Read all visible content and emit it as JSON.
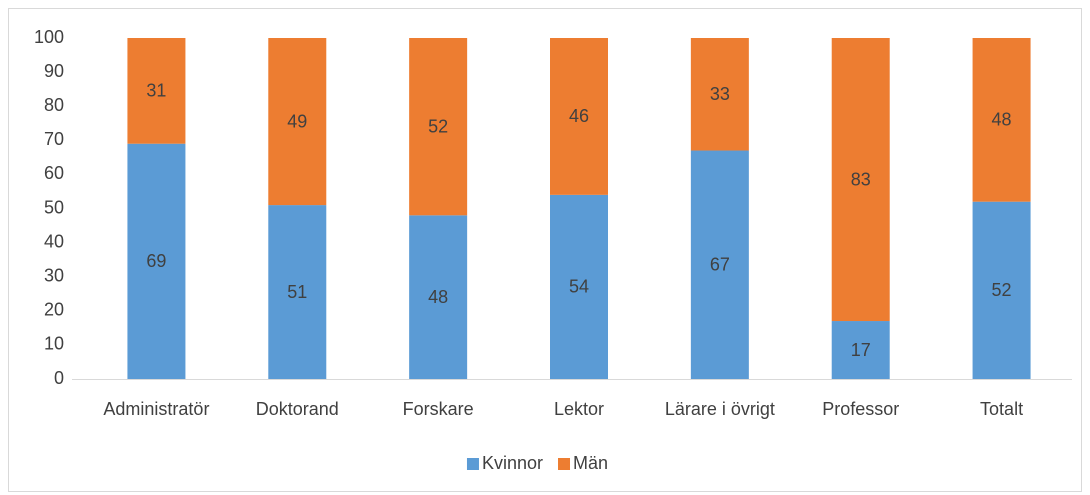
{
  "chart_data": {
    "type": "stacked_bar",
    "categories": [
      "Administratör",
      "Doktorand",
      "Forskare",
      "Lektor",
      "Lärare i övrigt",
      "Professor",
      "Totalt"
    ],
    "series": [
      {
        "name": "Kvinnor",
        "color": "#5b9bd5",
        "values": [
          69,
          51,
          48,
          54,
          67,
          17,
          52
        ]
      },
      {
        "name": "Män",
        "color": "#ed7d31",
        "values": [
          31,
          49,
          52,
          46,
          33,
          83,
          48
        ]
      }
    ],
    "ylim": [
      0,
      100
    ],
    "yticks": [
      0,
      10,
      20,
      30,
      40,
      50,
      60,
      70,
      80,
      90,
      100
    ],
    "grid": false,
    "legend": "bottom",
    "data_labels": true
  }
}
